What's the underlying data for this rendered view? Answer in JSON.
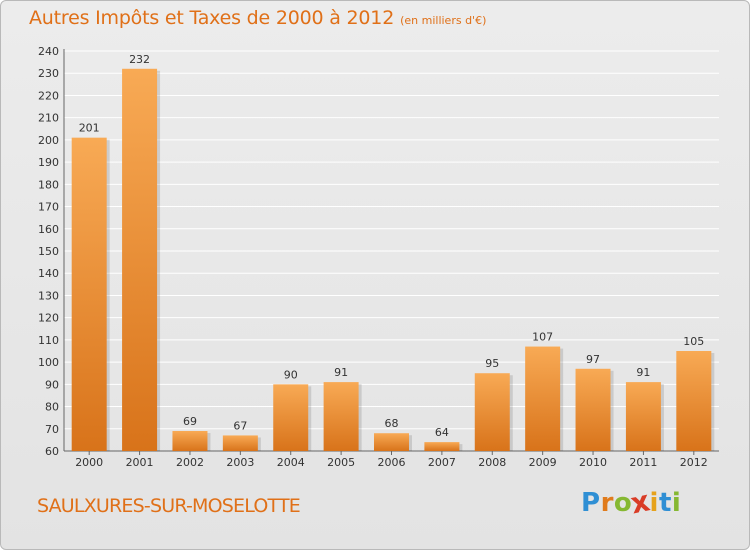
{
  "header": {
    "title": "Autres Impôts et Taxes de 2000 à 2012",
    "unit": "(en milliers d'€)"
  },
  "footer": {
    "commune": "SAULXURES-SUR-MOSELOTTE",
    "logo": {
      "letters": [
        "P",
        "r",
        "o",
        "x",
        "i",
        "t",
        "i"
      ],
      "colors": [
        "#2f8fd4",
        "#e07b1c",
        "#86b832",
        "#d93c26",
        "#e6a21b",
        "#2f8fd4",
        "#86b832"
      ]
    }
  },
  "colors": {
    "bar_light": "#f8aa55",
    "bar_dark": "#d8731a",
    "text": "#e07018",
    "grid": "#ffffff",
    "axis": "#666666"
  },
  "chart_data": {
    "type": "bar",
    "title": "Autres Impôts et Taxes de 2000 à 2012",
    "subtitle": "(en milliers d'€)",
    "xlabel": "",
    "ylabel": "",
    "categories": [
      "2000",
      "2001",
      "2002",
      "2003",
      "2004",
      "2005",
      "2006",
      "2007",
      "2008",
      "2009",
      "2010",
      "2011",
      "2012"
    ],
    "values": [
      201,
      232,
      69,
      67,
      90,
      91,
      68,
      64,
      95,
      107,
      97,
      91,
      105
    ],
    "data_labels": [
      "201",
      "232",
      "69",
      "67",
      "90",
      "91",
      "68",
      "64",
      "95",
      "107",
      "97",
      "91",
      "105"
    ],
    "ylim": [
      60,
      240
    ],
    "yticks": [
      60,
      70,
      80,
      90,
      100,
      110,
      120,
      130,
      140,
      150,
      160,
      170,
      180,
      190,
      200,
      210,
      220,
      230,
      240
    ],
    "grid": true,
    "legend": "none"
  }
}
